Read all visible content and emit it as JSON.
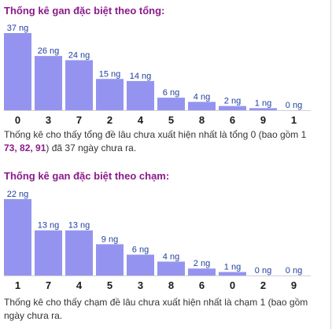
{
  "sections": [
    {
      "title": "Thống kê gan đặc biệt theo tổng:",
      "desc_line1": "Thống kê cho thấy tổng đề lâu chưa xuất hiện nhất là tổng 0 (bao gồm 1",
      "desc_hl": "73, 82, 91",
      "desc_line2_rest": ") đã 37 ngày chưa ra."
    },
    {
      "title": "Thống kê gan đặc biệt theo chạm:",
      "desc_line1": "Thống kê cho thấy chạm đề lâu chưa xuất hiện nhất là chạm 1 (bao gồm",
      "desc_line2": "ngày chưa ra."
    }
  ],
  "colors": {
    "bar": "#9494f0",
    "title": "#8b1a8b",
    "value_label": "#1f3f9f"
  },
  "chart_data": [
    {
      "type": "bar",
      "title": "Thống kê gan đặc biệt theo tổng:",
      "categories": [
        "0",
        "3",
        "7",
        "2",
        "4",
        "5",
        "8",
        "6",
        "9",
        "1"
      ],
      "values": [
        37,
        26,
        24,
        15,
        14,
        6,
        4,
        2,
        1,
        0
      ],
      "labels": [
        "37 ng",
        "26 ng",
        "24 ng",
        "15 ng",
        "14 ng",
        "6 ng",
        "4 ng",
        "2 ng",
        "1 ng",
        "0 ng"
      ],
      "ylim": [
        0,
        37
      ]
    },
    {
      "type": "bar",
      "title": "Thống kê gan đặc biệt theo chạm:",
      "categories": [
        "1",
        "7",
        "4",
        "5",
        "3",
        "8",
        "6",
        "0",
        "2",
        "9"
      ],
      "values": [
        22,
        13,
        13,
        9,
        6,
        4,
        2,
        1,
        0,
        0
      ],
      "labels": [
        "22 ng",
        "13 ng",
        "13 ng",
        "9 ng",
        "6 ng",
        "4 ng",
        "2 ng",
        "1 ng",
        "0 ng",
        "0 ng"
      ],
      "ylim": [
        0,
        22
      ]
    }
  ]
}
